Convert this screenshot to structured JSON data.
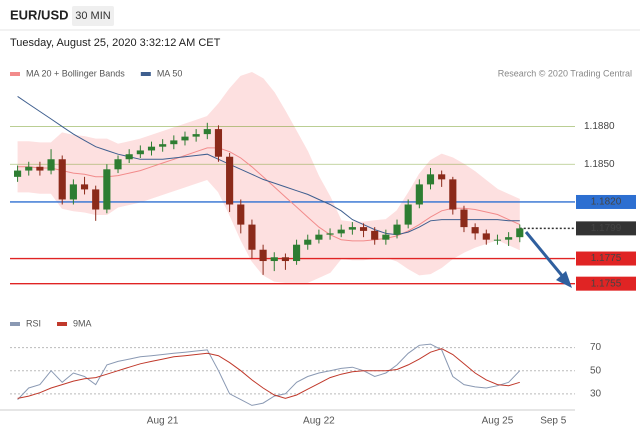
{
  "chart_data": [
    {
      "type": "candlestick",
      "title": "EUR/USD",
      "timeframe": "30 MIN",
      "subtitle": "Tuesday, August 25, 2020 3:32:12 AM CET",
      "credit": "Research © 2020 Trading Central",
      "categories": [
        null,
        null,
        null,
        null,
        null,
        null,
        null,
        null,
        null,
        null,
        null,
        null,
        null,
        "Aug 21",
        null,
        null,
        null,
        null,
        null,
        null,
        null,
        null,
        null,
        null,
        null,
        null,
        null,
        "Aug 22",
        null,
        null,
        null,
        null,
        null,
        null,
        null,
        null,
        null,
        null,
        null,
        null,
        null,
        null,
        null,
        "Aug 25",
        null,
        null,
        null,
        null,
        "Sep 5",
        null
      ],
      "ylim": [
        1.1742,
        1.1929
      ],
      "up_color": "#2e7d32",
      "down_color": "#8b2a1a",
      "open": [
        1.184,
        1.1845,
        1.1848,
        1.1845,
        1.1854,
        1.1822,
        1.1834,
        1.183,
        1.1814,
        1.1846,
        1.1854,
        1.1858,
        1.1861,
        1.1864,
        1.1866,
        1.1869,
        1.1872,
        1.1874,
        1.1878,
        1.1856,
        1.1818,
        1.1802,
        1.1782,
        1.1773,
        1.1776,
        1.1773,
        1.1786,
        1.179,
        1.1794,
        1.1795,
        1.1798,
        1.18,
        1.1797,
        1.179,
        1.1794,
        1.1802,
        1.1818,
        1.1834,
        1.1842,
        1.1838,
        1.1814,
        1.18,
        1.1795,
        1.179,
        1.179,
        1.1792,
        null,
        null,
        null,
        null
      ],
      "high": [
        1.1849,
        1.1852,
        1.1852,
        1.1862,
        1.1857,
        1.1838,
        1.184,
        1.1833,
        1.185,
        1.1857,
        1.1862,
        1.1865,
        1.1868,
        1.187,
        1.1873,
        1.1876,
        1.1878,
        1.1883,
        1.1881,
        1.1859,
        1.1822,
        1.1806,
        1.1786,
        1.178,
        1.1779,
        1.179,
        1.1794,
        1.1798,
        1.1799,
        1.1802,
        1.1804,
        1.1803,
        1.18,
        1.1798,
        1.1806,
        1.1822,
        1.1838,
        1.1847,
        1.1845,
        1.184,
        1.1817,
        1.1803,
        1.1798,
        1.1794,
        1.1796,
        1.1802,
        null,
        null,
        null,
        null
      ],
      "low": [
        1.1836,
        1.1841,
        1.1841,
        1.1842,
        1.1818,
        1.1818,
        1.1826,
        1.1805,
        1.1811,
        1.1843,
        1.1851,
        1.1855,
        1.1857,
        1.186,
        1.1862,
        1.1865,
        1.1868,
        1.187,
        1.1852,
        1.1812,
        1.1795,
        1.1775,
        1.1762,
        1.1765,
        1.1766,
        1.177,
        1.1782,
        1.1787,
        1.179,
        1.1792,
        1.1794,
        1.1792,
        1.1786,
        1.1786,
        1.1791,
        1.1799,
        1.1815,
        1.183,
        1.1832,
        1.181,
        1.1796,
        1.179,
        1.1786,
        1.1786,
        1.1785,
        1.1788,
        null,
        null,
        null,
        null
      ],
      "close": [
        1.1845,
        1.1848,
        1.1845,
        1.1854,
        1.1822,
        1.1834,
        1.183,
        1.1814,
        1.1846,
        1.1854,
        1.1858,
        1.1861,
        1.1864,
        1.1866,
        1.1869,
        1.1872,
        1.1874,
        1.1878,
        1.1856,
        1.1818,
        1.1802,
        1.1782,
        1.1773,
        1.1776,
        1.1773,
        1.1786,
        1.179,
        1.1794,
        1.1795,
        1.1798,
        1.18,
        1.1797,
        1.179,
        1.1794,
        1.1802,
        1.1818,
        1.1834,
        1.1842,
        1.1838,
        1.1814,
        1.18,
        1.1795,
        1.179,
        1.179,
        1.1792,
        1.1799,
        null,
        null,
        null,
        null
      ],
      "series": [
        {
          "name": "MA 20 + Bollinger Bands",
          "color": "#f28b8b",
          "band_color": "#fde0e0",
          "values": [
            1.1848,
            1.1848,
            1.1847,
            1.1847,
            1.1845,
            1.1843,
            1.1842,
            1.184,
            1.184,
            1.1841,
            1.1843,
            1.1845,
            1.1848,
            1.1851,
            1.1854,
            1.1857,
            1.186,
            1.1863,
            1.1863,
            1.186,
            1.1855,
            1.1848,
            1.184,
            1.1832,
            1.1824,
            1.1816,
            1.1808,
            1.18,
            1.1794,
            1.179,
            1.1789,
            1.1789,
            1.179,
            1.1791,
            1.1793,
            1.1797,
            1.1802,
            1.1808,
            1.1813,
            1.1815,
            1.1815,
            1.1814,
            1.1812,
            1.181,
            1.1806,
            1.1802,
            null,
            null,
            null,
            null
          ],
          "upper": [
            1.1868,
            1.1868,
            1.1867,
            1.1867,
            1.1875,
            1.1873,
            1.1872,
            1.187,
            1.187,
            1.1866,
            1.1868,
            1.187,
            1.1873,
            1.1876,
            1.1879,
            1.1882,
            1.1885,
            1.1888,
            1.1898,
            1.191,
            1.192,
            1.1923,
            1.1918,
            1.1907,
            1.1892,
            1.1876,
            1.186,
            1.184,
            1.1824,
            1.1805,
            1.1804,
            1.1804,
            1.1805,
            1.1806,
            1.1813,
            1.1827,
            1.1842,
            1.1853,
            1.1858,
            1.1855,
            1.185,
            1.1844,
            1.1837,
            1.183,
            1.1826,
            1.1822,
            null,
            null,
            null,
            null
          ],
          "lower": [
            1.1828,
            1.1828,
            1.1827,
            1.1827,
            1.1815,
            1.1813,
            1.1812,
            1.181,
            1.181,
            1.1816,
            1.1818,
            1.182,
            1.1823,
            1.1826,
            1.1829,
            1.1832,
            1.1835,
            1.1838,
            1.1828,
            1.181,
            1.179,
            1.1773,
            1.1762,
            1.1757,
            1.1756,
            1.1756,
            1.1756,
            1.176,
            1.1764,
            1.1775,
            1.1774,
            1.1774,
            1.1775,
            1.1776,
            1.1773,
            1.1767,
            1.1762,
            1.1763,
            1.1768,
            1.1775,
            1.178,
            1.1784,
            1.1787,
            1.179,
            1.1786,
            1.1782,
            null,
            null,
            null,
            null
          ]
        },
        {
          "name": "MA 50",
          "color": "#3f5f8f",
          "values": [
            1.1904,
            1.1898,
            1.1892,
            1.1886,
            1.188,
            1.1874,
            1.1869,
            1.1864,
            1.1861,
            1.1858,
            1.1856,
            1.1854,
            1.1854,
            1.1854,
            1.1855,
            1.1856,
            1.1857,
            1.1858,
            1.1854,
            1.185,
            1.1846,
            1.1842,
            1.1838,
            1.1835,
            1.1832,
            1.1829,
            1.1826,
            1.1822,
            1.1818,
            1.1813,
            1.1806,
            1.1802,
            1.1798,
            1.1795,
            1.1794,
            1.1796,
            1.18,
            1.1805,
            1.1806,
            1.1806,
            1.1806,
            1.1806,
            1.1806,
            1.1806,
            1.1805,
            1.1805,
            null,
            null,
            null,
            null
          ]
        }
      ],
      "levels": [
        {
          "value": 1.188,
          "label": "1.1880",
          "color": "#6f9a1f",
          "box": false,
          "dotted": false
        },
        {
          "value": 1.185,
          "label": "1.1850",
          "color": "#6f9a1f",
          "box": false,
          "dotted": false
        },
        {
          "value": 1.182,
          "label": "1.1820",
          "color": "#2d6fd1",
          "box": true,
          "dotted": false
        },
        {
          "value": 1.1799,
          "label": "1.1799",
          "color": "#333333",
          "box": true,
          "dotted": true
        },
        {
          "value": 1.1775,
          "label": "1.1775",
          "color": "#e02424",
          "box": true,
          "dotted": false
        },
        {
          "value": 1.1755,
          "label": "1.1755",
          "color": "#e02424",
          "box": true,
          "dotted": false
        }
      ]
    },
    {
      "type": "line",
      "ylim": [
        16,
        80
      ],
      "yticks": [
        30,
        50,
        70
      ],
      "grid": true,
      "series": [
        {
          "name": "RSI",
          "color": "#8a99b3",
          "values": [
            25,
            35,
            38,
            50,
            40,
            48,
            45,
            38,
            55,
            58,
            60,
            62,
            63,
            64,
            65,
            66,
            67,
            68,
            50,
            30,
            25,
            20,
            22,
            28,
            30,
            40,
            45,
            48,
            50,
            52,
            53,
            50,
            45,
            48,
            55,
            65,
            72,
            73,
            68,
            45,
            38,
            36,
            35,
            37,
            40,
            50,
            null,
            null,
            null,
            null
          ]
        },
        {
          "name": "9MA",
          "color": "#c0392b",
          "values": [
            26,
            28,
            31,
            35,
            38,
            41,
            43,
            44,
            47,
            50,
            53,
            56,
            58,
            60,
            62,
            63,
            64,
            65,
            63,
            57,
            50,
            42,
            35,
            29,
            26,
            29,
            34,
            39,
            44,
            47,
            49,
            50,
            50,
            50,
            51,
            55,
            60,
            66,
            69,
            64,
            56,
            48,
            42,
            38,
            37,
            40,
            null,
            null,
            null,
            null
          ]
        }
      ]
    }
  ]
}
